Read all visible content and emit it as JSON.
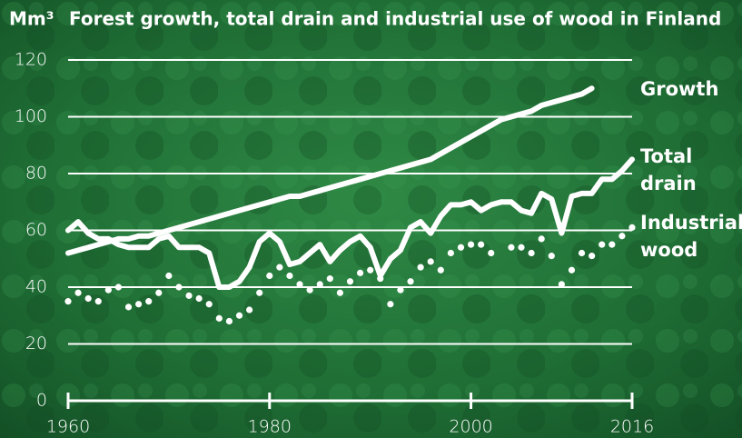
{
  "chart_data": {
    "type": "line",
    "title": "Forest growth, total drain and industrial use of wood in Finland",
    "y_label": "Mm³",
    "x": [
      1960,
      1961,
      1962,
      1963,
      1964,
      1965,
      1966,
      1967,
      1968,
      1969,
      1970,
      1971,
      1972,
      1973,
      1974,
      1975,
      1976,
      1977,
      1978,
      1979,
      1980,
      1981,
      1982,
      1983,
      1984,
      1985,
      1986,
      1987,
      1988,
      1989,
      1990,
      1991,
      1992,
      1993,
      1994,
      1995,
      1996,
      1997,
      1998,
      1999,
      2000,
      2001,
      2002,
      2003,
      2004,
      2005,
      2006,
      2007,
      2008,
      2009,
      2010,
      2011,
      2012,
      2013,
      2014,
      2015,
      2016
    ],
    "xlim": [
      1960,
      2016
    ],
    "xticks": [
      1960,
      1980,
      2000,
      2016
    ],
    "ylim": [
      0,
      120
    ],
    "yticks": [
      0,
      20,
      40,
      60,
      80,
      100,
      120
    ],
    "grid": true,
    "series": [
      {
        "name": "Growth",
        "color": "#ffffff",
        "style": "solid",
        "values": [
          52,
          53,
          54,
          55,
          56,
          57,
          57,
          58,
          58,
          59,
          60,
          61,
          62,
          63,
          64,
          65,
          66,
          67,
          68,
          69,
          70,
          71,
          72,
          72,
          73,
          74,
          75,
          76,
          77,
          78,
          79,
          80,
          81,
          82,
          83,
          84,
          85,
          87,
          89,
          91,
          93,
          95,
          97,
          99,
          100,
          101,
          102,
          104,
          105,
          106,
          107,
          108,
          110,
          null,
          null,
          null,
          null
        ]
      },
      {
        "name": "Total drain",
        "color": "#ffffff",
        "style": "solid",
        "values": [
          60,
          63,
          59,
          57,
          57,
          55,
          54,
          54,
          54,
          57,
          58,
          54,
          54,
          54,
          52,
          40,
          40,
          42,
          47,
          56,
          59,
          56,
          48,
          49,
          52,
          55,
          49,
          53,
          56,
          58,
          54,
          44,
          50,
          53,
          61,
          63,
          59,
          65,
          69,
          69,
          70,
          67,
          69,
          70,
          70,
          67,
          66,
          73,
          71,
          59,
          72,
          73,
          73,
          78,
          78,
          81,
          85
        ]
      },
      {
        "name": "Industrial wood",
        "color": "#ffffff",
        "style": "dotted",
        "values": [
          35,
          38,
          36,
          35,
          39,
          40,
          33,
          34,
          35,
          38,
          44,
          40,
          37,
          36,
          34,
          29,
          28,
          30,
          32,
          38,
          44,
          47,
          44,
          41,
          39,
          41,
          43,
          38,
          42,
          45,
          46,
          43,
          34,
          39,
          42,
          47,
          49,
          46,
          52,
          54,
          55,
          55,
          52,
          null,
          54,
          54,
          52,
          57,
          51,
          41,
          46,
          52,
          51,
          55,
          55,
          58,
          61
        ]
      }
    ]
  }
}
